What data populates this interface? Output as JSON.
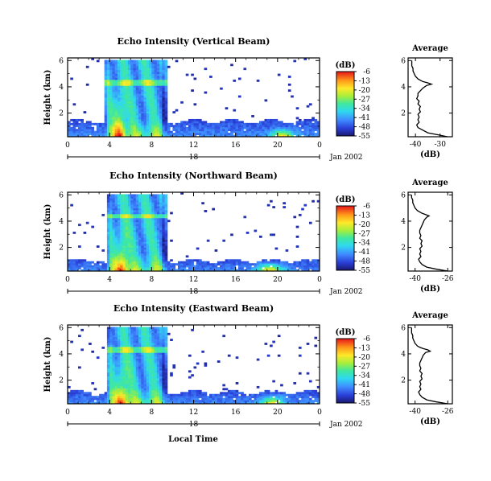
{
  "figure": {
    "local_time_label": "Local Time",
    "date_label": "Jan 2002",
    "day_label": "18"
  },
  "chart_data": [
    {
      "type": "heatmap",
      "title": "Echo Intensity (Vertical Beam)",
      "ylabel": "Height (km)",
      "xlabel": "Local Time",
      "x_ticks": [
        "0",
        "4",
        "8",
        "12",
        "16",
        "20",
        "0"
      ],
      "x_range": [
        0,
        24
      ],
      "y_ticks": [
        "2",
        "4",
        "6"
      ],
      "y_range": [
        0.2,
        6.2
      ],
      "colorbar": {
        "unit": "(dB)",
        "ticks": [
          "-6",
          "-13",
          "-20",
          "-27",
          "-34",
          "-41",
          "-48",
          "-55"
        ],
        "range": [
          -55,
          -6
        ]
      },
      "features": {
        "cloud_start": 3.4,
        "cloud_end": 9.4,
        "cloud_top": 6.0,
        "layer_height": 4.3,
        "boundary_top": 1.4,
        "hot1_time": 5.0,
        "hot2_time": 20.5,
        "hot2_width": 1.0
      },
      "average_profile": {
        "title": "Average",
        "xlabel": "(dB)",
        "x_ticks": [
          "-40",
          "-30"
        ],
        "x_range": [
          -43,
          -25
        ],
        "y_ticks": [
          "2",
          "4",
          "6"
        ],
        "y_range": [
          0.2,
          6.2
        ],
        "heights": [
          0.2,
          0.35,
          0.5,
          0.7,
          0.9,
          1.1,
          1.3,
          1.5,
          1.7,
          1.9,
          2.1,
          2.3,
          2.5,
          2.7,
          2.9,
          3.1,
          3.3,
          3.5,
          3.7,
          3.9,
          4.1,
          4.2,
          4.3,
          4.4,
          4.5,
          4.6,
          4.8,
          5.0,
          5.2,
          5.4,
          5.6,
          5.8,
          6.0
        ],
        "values": [
          -27,
          -31,
          -35,
          -37,
          -39,
          -39.5,
          -38.5,
          -39,
          -38.5,
          -39,
          -38,
          -38.5,
          -38,
          -39,
          -38.5,
          -39.5,
          -39,
          -39,
          -38,
          -37,
          -35.5,
          -33.5,
          -35,
          -37,
          -38,
          -39,
          -40,
          -40.5,
          -41,
          -41,
          -41.5,
          -41.5,
          -41.5
        ]
      }
    },
    {
      "type": "heatmap",
      "title": "Echo Intensity (Northward Beam)",
      "ylabel": "Height (km)",
      "xlabel": "Local Time",
      "x_ticks": [
        "0",
        "4",
        "8",
        "12",
        "16",
        "20",
        "0"
      ],
      "x_range": [
        0,
        24
      ],
      "y_ticks": [
        "2",
        "4",
        "6"
      ],
      "y_range": [
        0.2,
        6.2
      ],
      "colorbar": {
        "unit": "(dB)",
        "ticks": [
          "-6",
          "-13",
          "-20",
          "-27",
          "-34",
          "-41",
          "-48",
          "-55"
        ],
        "range": [
          -55,
          -6
        ]
      },
      "features": {
        "cloud_start": 3.8,
        "cloud_end": 9.4,
        "cloud_top": 6.0,
        "layer_height": 4.4,
        "boundary_top": 1.0,
        "hot1_time": 5.2,
        "hot2_time": 19.3,
        "hot2_width": 1.2
      },
      "average_profile": {
        "title": "Average",
        "xlabel": "(dB)",
        "x_ticks": [
          "-40",
          "-26"
        ],
        "x_range": [
          -43,
          -24
        ],
        "y_ticks": [
          "2",
          "4",
          "6"
        ],
        "y_range": [
          0.2,
          6.2
        ],
        "heights": [
          0.2,
          0.35,
          0.5,
          0.7,
          0.9,
          1.1,
          1.3,
          1.5,
          1.7,
          1.9,
          2.1,
          2.3,
          2.5,
          2.7,
          2.9,
          3.1,
          3.3,
          3.5,
          3.7,
          3.9,
          4.1,
          4.3,
          4.4,
          4.5,
          4.6,
          4.8,
          5.0,
          5.2,
          5.4,
          5.6,
          5.8,
          6.0
        ],
        "values": [
          -26,
          -31,
          -35,
          -37,
          -38,
          -38.5,
          -37.5,
          -38,
          -37.5,
          -38,
          -37,
          -37.5,
          -37,
          -38,
          -37.5,
          -38,
          -38,
          -37.5,
          -37,
          -36.5,
          -36,
          -35,
          -34,
          -35.5,
          -37,
          -39,
          -40,
          -40.5,
          -41,
          -41,
          -41.5,
          -41.5
        ]
      }
    },
    {
      "type": "heatmap",
      "title": "Echo Intensity (Eastward Beam)",
      "ylabel": "Height (km)",
      "xlabel": "Local Time",
      "x_ticks": [
        "0",
        "4",
        "8",
        "12",
        "16",
        "20",
        "0"
      ],
      "x_range": [
        0,
        24
      ],
      "y_ticks": [
        "2",
        "4",
        "6"
      ],
      "y_range": [
        0.2,
        6.2
      ],
      "colorbar": {
        "unit": "(dB)",
        "ticks": [
          "-6",
          "-13",
          "-20",
          "-27",
          "-34",
          "-41",
          "-48",
          "-55"
        ],
        "range": [
          -55,
          -6
        ]
      },
      "features": {
        "cloud_start": 3.8,
        "cloud_end": 9.4,
        "cloud_top": 6.0,
        "layer_height": 4.3,
        "boundary_top": 1.1,
        "hot1_time": 5.2,
        "hot2_time": 19.5,
        "hot2_width": 1.0
      },
      "average_profile": {
        "title": "Average",
        "xlabel": "(dB)",
        "x_ticks": [
          "-40",
          "-26"
        ],
        "x_range": [
          -43,
          -24
        ],
        "y_ticks": [
          "2",
          "4",
          "6"
        ],
        "y_range": [
          0.2,
          6.2
        ],
        "heights": [
          0.2,
          0.35,
          0.5,
          0.7,
          0.9,
          1.1,
          1.3,
          1.5,
          1.7,
          1.9,
          2.1,
          2.3,
          2.5,
          2.7,
          2.9,
          3.1,
          3.3,
          3.5,
          3.7,
          3.9,
          4.1,
          4.2,
          4.3,
          4.4,
          4.5,
          4.6,
          4.8,
          5.0,
          5.2,
          5.4,
          5.6,
          5.8,
          6.0
        ],
        "values": [
          -26,
          -31,
          -35,
          -37,
          -38,
          -38.5,
          -37.5,
          -38,
          -37.5,
          -38,
          -37,
          -37.5,
          -37,
          -38,
          -37.5,
          -38,
          -38,
          -37.5,
          -37,
          -36.5,
          -35.5,
          -33.5,
          -34.5,
          -36.5,
          -38,
          -39,
          -40,
          -40.5,
          -41,
          -41,
          -41.5,
          -41.5,
          -41.5
        ]
      }
    }
  ]
}
